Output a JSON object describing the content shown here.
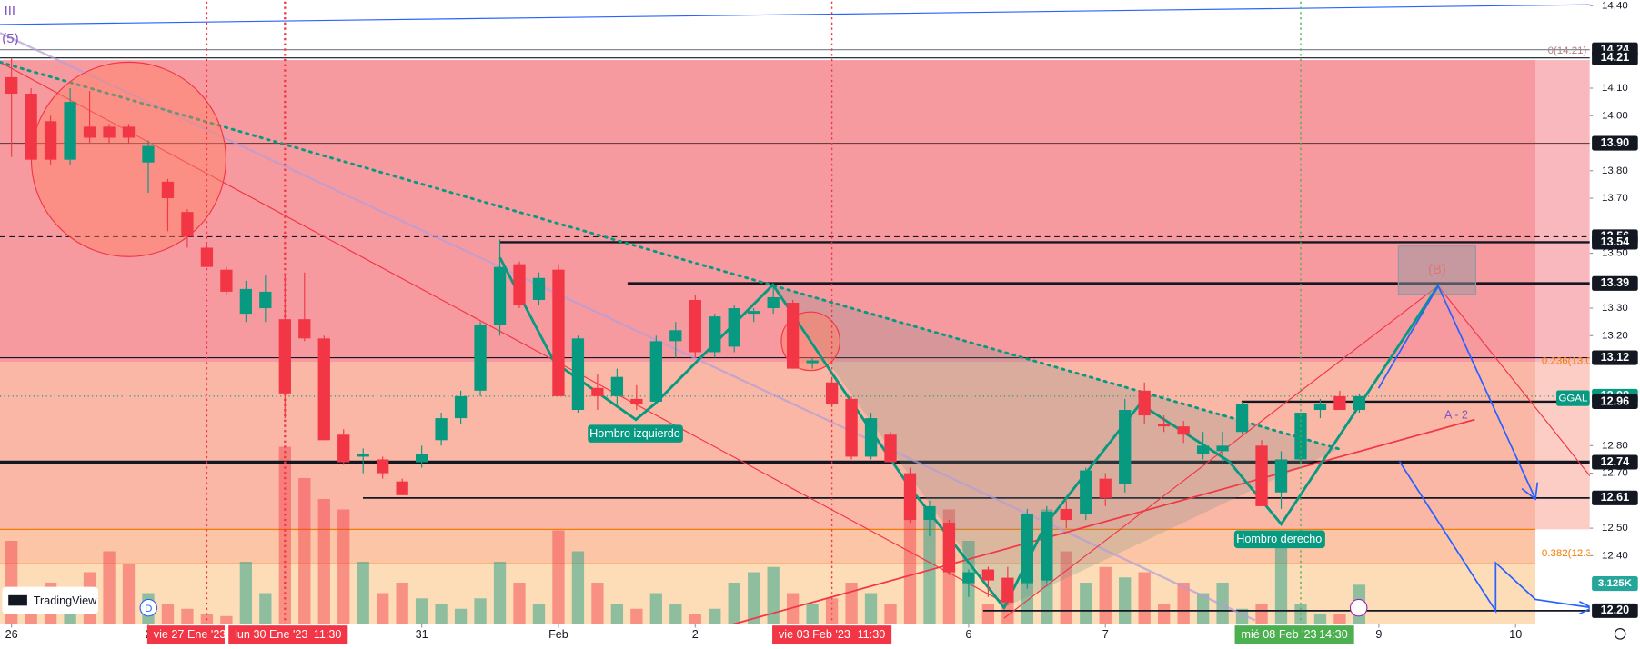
{
  "chart_data": {
    "type": "candlestick",
    "up_color": "#089981",
    "down_color": "#f23645",
    "open": [
      14.14,
      14.08,
      13.98,
      13.84,
      13.96,
      13.96,
      13.96,
      13.83,
      13.76,
      13.65,
      13.52,
      13.44,
      13.28,
      13.3,
      13.26,
      13.26,
      13.19,
      12.84,
      12.76,
      12.75,
      12.67,
      12.74,
      12.82,
      12.9,
      13.0,
      13.24,
      13.46,
      13.33,
      13.44,
      12.93,
      13.01,
      12.98,
      12.97,
      12.96,
      13.18,
      13.33,
      13.14,
      13.16,
      13.28,
      13.3,
      13.32,
      13.1,
      13.03,
      12.97,
      12.76,
      12.84,
      12.7,
      12.53,
      12.52,
      12.3,
      12.35,
      12.32,
      12.3,
      12.31,
      12.57,
      12.55,
      12.68,
      12.66,
      13.0,
      12.88,
      12.87,
      12.77,
      12.78,
      12.85,
      12.8,
      12.63,
      12.75,
      12.93,
      12.98,
      12.93
    ],
    "high": [
      14.21,
      14.1,
      14.0,
      14.1,
      14.09,
      13.97,
      13.97,
      13.91,
      13.77,
      13.66,
      13.53,
      13.45,
      13.4,
      13.42,
      13.42,
      13.43,
      13.2,
      12.86,
      12.79,
      12.76,
      12.68,
      12.8,
      12.92,
      13.0,
      13.25,
      13.55,
      13.47,
      13.43,
      13.46,
      13.2,
      13.06,
      13.08,
      13.02,
      13.2,
      13.25,
      13.35,
      13.28,
      13.31,
      13.3,
      13.39,
      13.33,
      13.12,
      13.05,
      12.98,
      12.92,
      12.85,
      12.72,
      12.6,
      12.53,
      12.35,
      12.36,
      12.36,
      12.57,
      12.58,
      12.6,
      12.72,
      12.7,
      12.97,
      13.03,
      12.91,
      12.89,
      12.85,
      12.85,
      12.96,
      12.82,
      12.78,
      12.92,
      12.97,
      13.0,
      12.99
    ],
    "low": [
      13.85,
      13.84,
      13.82,
      13.82,
      13.9,
      13.9,
      13.9,
      13.72,
      13.58,
      13.52,
      13.45,
      13.35,
      13.25,
      13.25,
      12.9,
      13.18,
      12.82,
      12.73,
      12.7,
      12.68,
      12.62,
      12.72,
      12.8,
      12.88,
      12.98,
      13.2,
      13.3,
      13.31,
      12.98,
      12.92,
      12.93,
      12.95,
      12.93,
      12.95,
      13.12,
      13.12,
      13.12,
      13.14,
      13.25,
      13.28,
      13.08,
      13.08,
      12.94,
      12.75,
      12.75,
      12.74,
      12.52,
      12.47,
      12.33,
      12.25,
      12.25,
      12.22,
      12.28,
      12.3,
      12.5,
      12.53,
      12.58,
      12.63,
      12.88,
      12.85,
      12.81,
      12.75,
      12.74,
      12.84,
      12.58,
      12.57,
      12.74,
      12.9,
      12.93,
      12.92
    ],
    "close": [
      14.08,
      13.84,
      13.84,
      14.05,
      13.92,
      13.92,
      13.92,
      13.89,
      13.7,
      13.56,
      13.45,
      13.36,
      13.37,
      13.36,
      12.99,
      13.19,
      12.82,
      12.74,
      12.77,
      12.7,
      12.62,
      12.77,
      12.9,
      12.98,
      13.24,
      13.45,
      13.31,
      13.41,
      12.98,
      13.19,
      12.98,
      13.05,
      12.95,
      13.18,
      13.22,
      13.14,
      13.27,
      13.3,
      13.29,
      13.34,
      13.08,
      13.11,
      12.95,
      12.76,
      12.9,
      12.74,
      12.53,
      12.58,
      12.34,
      12.34,
      12.31,
      12.23,
      12.55,
      12.56,
      12.53,
      12.71,
      12.61,
      12.93,
      12.91,
      12.87,
      12.84,
      12.8,
      12.8,
      12.95,
      12.58,
      12.75,
      12.92,
      12.95,
      12.93,
      12.98
    ],
    "volume": [
      6400,
      1600,
      3200,
      2400,
      4000,
      5600,
      4640,
      2400,
      1600,
      1200,
      800,
      640,
      4800,
      2400,
      13600,
      11200,
      9600,
      8800,
      4800,
      2400,
      3200,
      2000,
      1600,
      1200,
      2000,
      4800,
      3200,
      1600,
      7200,
      5600,
      3200,
      1600,
      1200,
      2400,
      1600,
      800,
      1200,
      3200,
      4000,
      4400,
      2400,
      1600,
      2000,
      3200,
      2400,
      1600,
      10400,
      8000,
      8800,
      6400,
      1600,
      2800,
      4000,
      8800,
      5600,
      3200,
      4400,
      3600,
      4000,
      1600,
      3200,
      2400,
      3200,
      1200,
      1600,
      7200,
      1600,
      800,
      800,
      3040
    ],
    "vlim": [
      0,
      47680
    ],
    "volume_marker": {
      "value": 3125,
      "label": "3.125K",
      "color": "#26a69a"
    },
    "xlim": [
      -0.59,
      80.8
    ],
    "ylim": [
      12.15,
      14.415
    ],
    "xticks": [
      {
        "value": 0,
        "label": "26"
      },
      {
        "value": 7,
        "label": "2"
      },
      {
        "value": 21,
        "label": "31"
      },
      {
        "value": 28,
        "label": "Feb"
      },
      {
        "value": 35,
        "label": "2"
      },
      {
        "value": 49,
        "label": "6"
      },
      {
        "value": 56,
        "label": "7"
      },
      {
        "value": 70,
        "label": "9"
      },
      {
        "value": 77,
        "label": "10"
      }
    ],
    "yticks": [
      {
        "value": 14.4,
        "label": "14.40"
      },
      {
        "value": 14.1,
        "label": "14.10"
      },
      {
        "value": 14.0,
        "label": "14.00"
      },
      {
        "value": 13.8,
        "label": "13.80"
      },
      {
        "value": 13.7,
        "label": "13.70"
      },
      {
        "value": 13.5,
        "label": "13.50"
      },
      {
        "value": 13.3,
        "label": "13.30"
      },
      {
        "value": 13.2,
        "label": "13.20"
      },
      {
        "value": 12.8,
        "label": "12.80"
      },
      {
        "value": 12.7,
        "label": "12.70"
      },
      {
        "value": 12.5,
        "label": "12.50"
      },
      {
        "value": 12.4,
        "label": "12.40"
      }
    ],
    "levels": [
      {
        "value": 14.24,
        "label": "14.24",
        "color": "#131722",
        "line_color": "#787b86",
        "style": "solid",
        "width": 1
      },
      {
        "value": 14.21,
        "label": "14.21",
        "color": "#131722",
        "line_color": "#131722",
        "style": "solid",
        "width": 1
      },
      {
        "value": 13.9,
        "label": "13.90",
        "color": "#131722",
        "line_color": "#6b4040",
        "style": "solid",
        "width": 1
      },
      {
        "value": 13.56,
        "label": "13.56",
        "color": "#131722",
        "line_color": "#131722",
        "style": "dashed",
        "width": 1
      },
      {
        "value": 13.54,
        "label": "13.54",
        "color": "#131722",
        "line_color": "#131722",
        "style": "solid",
        "width": 2
      },
      {
        "value": 13.39,
        "label": "13.39",
        "color": "#131722",
        "line_color": "#131722",
        "style": "solid",
        "width": 2.5
      },
      {
        "value": 13.12,
        "label": "13.12",
        "color": "#131722",
        "line_color": "#131722",
        "style": "solid",
        "width": 1
      },
      {
        "value": 12.98,
        "label": "12.98",
        "color": "#089981",
        "line_color": "#089981",
        "style": "dotted",
        "width": 1
      },
      {
        "value": 12.96,
        "label": "12.96",
        "color": "#131722",
        "line_color": "#131722",
        "style": "solid",
        "width": 2
      },
      {
        "value": 12.74,
        "label": "12.74",
        "color": "#131722",
        "line_color": "#131722",
        "style": "solid",
        "width": 3
      },
      {
        "value": 12.61,
        "label": "12.61",
        "color": "#131722",
        "line_color": "#131722",
        "style": "solid",
        "width": 1.5
      },
      {
        "value": 12.2,
        "label": "12.20",
        "color": "#131722",
        "line_color": "#131722",
        "style": "solid",
        "width": 1.5
      }
    ],
    "time_markers": [
      {
        "value": 10,
        "label": "vie 27 Ene '23",
        "color": "#f23645"
      },
      {
        "value": 14,
        "label": "lun 30 Ene '23",
        "time": "11:30",
        "color": "#f23645"
      },
      {
        "value": 42,
        "label": "vie 03 Feb '23",
        "time": "11:30",
        "color": "#f23645"
      },
      {
        "value": 66,
        "label": "mié 08 Feb '23",
        "time": "14:30",
        "color": "#4caf50"
      }
    ],
    "annotations": {
      "symbol": "GGAL",
      "wave_5": "(5)",
      "wave_b": "(B)",
      "wave_a2": "A - 2",
      "left_shoulder": "Hombro izquierdo",
      "right_shoulder": "Hombro derecho",
      "fib_0": "0(14.21)",
      "fib_236": "0.236(13.0",
      "fib_382": "0.382(12.3",
      "logo": "TradingView",
      "dividend": "D",
      "indicator": "III"
    }
  }
}
